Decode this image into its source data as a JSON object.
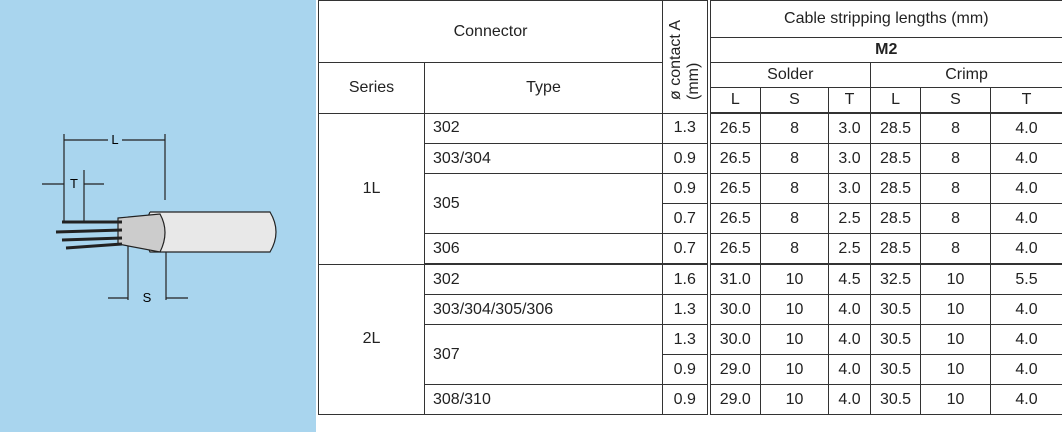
{
  "header": {
    "connector": "Connector",
    "contact": "ø contact A (mm)",
    "cable": "Cable stripping lengths (mm)",
    "model": "M2",
    "series": "Series",
    "type": "Type",
    "solder": "Solder",
    "crimp": "Crimp",
    "cols": [
      "L",
      "S",
      "T",
      "L",
      "S",
      "T"
    ]
  },
  "diagram": {
    "labels": [
      "L",
      "T",
      "S"
    ]
  },
  "table": {
    "groups": [
      {
        "series": "1L",
        "types": [
          {
            "type": "302",
            "rows": [
              [
                "1.3",
                "26.5",
                "8",
                "3.0",
                "28.5",
                "8",
                "4.0"
              ]
            ]
          },
          {
            "type": "303/304",
            "rows": [
              [
                "0.9",
                "26.5",
                "8",
                "3.0",
                "28.5",
                "8",
                "4.0"
              ]
            ]
          },
          {
            "type": "305",
            "rows": [
              [
                "0.9",
                "26.5",
                "8",
                "3.0",
                "28.5",
                "8",
                "4.0"
              ],
              [
                "0.7",
                "26.5",
                "8",
                "2.5",
                "28.5",
                "8",
                "4.0"
              ]
            ]
          },
          {
            "type": "306",
            "rows": [
              [
                "0.7",
                "26.5",
                "8",
                "2.5",
                "28.5",
                "8",
                "4.0"
              ]
            ]
          }
        ]
      },
      {
        "series": "2L",
        "types": [
          {
            "type": "302",
            "rows": [
              [
                "1.6",
                "31.0",
                "10",
                "4.5",
                "32.5",
                "10",
                "5.5"
              ]
            ]
          },
          {
            "type": "303/304/305/306",
            "rows": [
              [
                "1.3",
                "30.0",
                "10",
                "4.0",
                "30.5",
                "10",
                "4.0"
              ]
            ]
          },
          {
            "type": "307",
            "rows": [
              [
                "1.3",
                "30.0",
                "10",
                "4.0",
                "30.5",
                "10",
                "4.0"
              ],
              [
                "0.9",
                "29.0",
                "10",
                "4.0",
                "30.5",
                "10",
                "4.0"
              ]
            ]
          },
          {
            "type": "308/310",
            "rows": [
              [
                "0.9",
                "29.0",
                "10",
                "4.0",
                "30.5",
                "10",
                "4.0"
              ]
            ]
          }
        ]
      }
    ]
  }
}
